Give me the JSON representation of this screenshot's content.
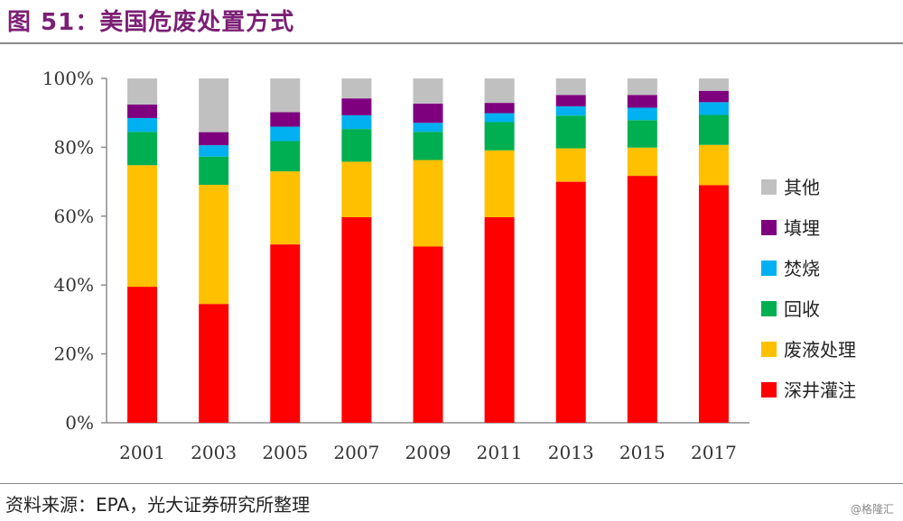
{
  "header": {
    "title": "图 51：美国危废处置方式"
  },
  "footer": {
    "source": "资料来源：EPA，光大证券研究所整理",
    "watermark": "@格隆汇"
  },
  "chart_data": {
    "type": "bar",
    "stacked": true,
    "categories": [
      "2001",
      "2003",
      "2005",
      "2007",
      "2009",
      "2011",
      "2013",
      "2015",
      "2017"
    ],
    "y_ticks": [
      "0%",
      "20%",
      "40%",
      "60%",
      "80%",
      "100%"
    ],
    "ylim": [
      0,
      100
    ],
    "grid": false,
    "legend_position": "right",
    "series": [
      {
        "name": "深井灌注",
        "color": "#ff0000",
        "values": [
          39.5,
          34.5,
          51.8,
          59.7,
          51.2,
          59.7,
          70.0,
          71.7,
          69.0
        ]
      },
      {
        "name": "废液处理",
        "color": "#ffc000",
        "values": [
          35.3,
          34.6,
          21.2,
          16.1,
          25.1,
          19.4,
          9.7,
          8.2,
          11.7
        ]
      },
      {
        "name": "回收",
        "color": "#00b050",
        "values": [
          9.7,
          8.2,
          8.8,
          9.5,
          8.2,
          8.2,
          9.5,
          8.0,
          8.7
        ]
      },
      {
        "name": "焚烧",
        "color": "#00b0f0",
        "values": [
          4.0,
          3.3,
          4.2,
          4.0,
          2.6,
          2.6,
          2.7,
          3.6,
          3.7
        ]
      },
      {
        "name": "填埋",
        "color": "#7f007f",
        "values": [
          3.9,
          3.8,
          4.2,
          4.9,
          5.6,
          3.0,
          3.3,
          3.7,
          3.3
        ]
      },
      {
        "name": "其他",
        "color": "#c0c0c0",
        "values": [
          7.6,
          15.6,
          9.8,
          5.8,
          7.3,
          7.1,
          4.8,
          4.8,
          3.6
        ]
      }
    ],
    "legend_order": [
      "其他",
      "填埋",
      "焚烧",
      "回收",
      "废液处理",
      "深井灌注"
    ]
  }
}
